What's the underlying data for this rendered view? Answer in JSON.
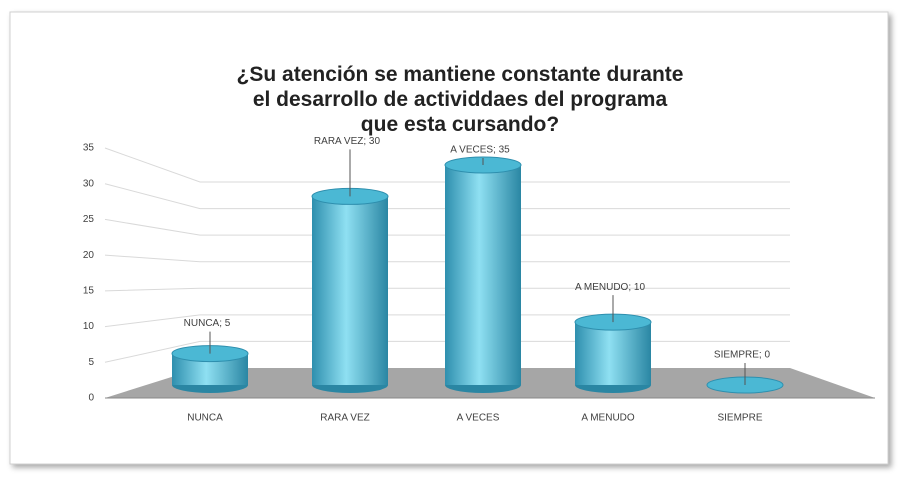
{
  "chart_data": {
    "type": "bar",
    "title": "¿Su atención se mantiene constante durante el desarrollo de actividdaes del programa que esta cursando?",
    "categories": [
      "NUNCA",
      "RARA VEZ",
      "A VECES",
      "A MENUDO",
      "SIEMPRE"
    ],
    "values": [
      5,
      30,
      35,
      10,
      0
    ],
    "value_labels": [
      "NUNCA; 5",
      "RARA VEZ; 30",
      "A VECES; 35",
      "A MENUDO; 10",
      "SIEMPRE; 0"
    ],
    "color": "#4bb8d4",
    "ylim": [
      0,
      35
    ],
    "yticks": [
      0,
      5,
      10,
      15,
      20,
      25,
      30,
      35
    ],
    "grid": true
  }
}
